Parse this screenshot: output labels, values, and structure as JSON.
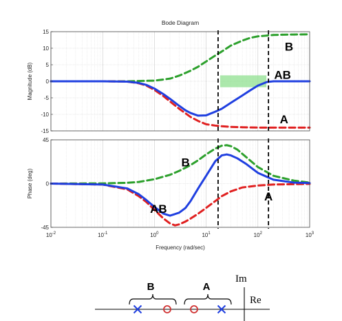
{
  "chart_data": [
    {
      "type": "line",
      "title": "Bode Diagram",
      "ylabel": "Magnitude (dB)",
      "xscale": "log",
      "xlim": [
        0.01,
        1000
      ],
      "ylim": [
        -15,
        15
      ],
      "xticks": [
        "10^-2",
        "10^-1",
        "10^0",
        "10^1",
        "10^2",
        "10^3"
      ],
      "yticks": [
        15,
        10,
        5,
        0,
        -5,
        -10,
        -15
      ],
      "grid": true,
      "series": [
        {
          "name": "B",
          "color": "#2ca02c",
          "style": "dashed",
          "x": [
            0.01,
            0.1,
            0.3,
            1,
            2,
            3,
            5,
            7,
            10,
            15,
            20,
            30,
            50,
            70,
            100,
            200,
            300,
            500,
            1000
          ],
          "y": [
            0,
            0,
            0,
            0.2,
            0.8,
            1.7,
            3.2,
            4.4,
            6.0,
            7.8,
            9.0,
            10.8,
            12.3,
            13.1,
            13.6,
            14.0,
            14.1,
            14.15,
            14.2
          ]
        },
        {
          "name": "A",
          "color": "#e02020",
          "style": "dashed",
          "x": [
            0.01,
            0.1,
            0.3,
            0.5,
            0.7,
            1,
            1.5,
            2,
            3,
            5,
            7,
            10,
            15,
            20,
            30,
            50,
            100,
            200,
            1000
          ],
          "y": [
            0,
            0,
            -0.1,
            -0.6,
            -1.3,
            -2.6,
            -4.5,
            -6.1,
            -8.3,
            -10.8,
            -12.0,
            -13.0,
            -13.4,
            -13.6,
            -13.8,
            -13.9,
            -14.0,
            -14.0,
            -14.0
          ]
        },
        {
          "name": "AB",
          "color": "#1f3fe0",
          "style": "solid",
          "x": [
            0.01,
            0.1,
            0.3,
            0.5,
            0.7,
            1,
            1.5,
            2,
            3,
            4,
            5,
            7,
            10,
            15,
            20,
            30,
            50,
            70,
            100,
            150,
            200,
            300,
            1000
          ],
          "y": [
            0,
            0,
            -0.1,
            -0.5,
            -1.1,
            -2.2,
            -3.9,
            -5.3,
            -7.4,
            -8.8,
            -9.6,
            -10.4,
            -10.3,
            -9.2,
            -8.3,
            -6.5,
            -4.3,
            -2.8,
            -1.3,
            -0.2,
            0,
            0,
            0
          ]
        }
      ],
      "annotations": [
        {
          "text": "B",
          "x": 400,
          "y": 10.5
        },
        {
          "text": "AB",
          "x": 300,
          "y": 2.0
        },
        {
          "text": "A",
          "x": 320,
          "y": -11.5
        }
      ],
      "vlines": [
        17,
        160
      ],
      "shaded_band": {
        "x": [
          17,
          160
        ],
        "y": [
          -1.8,
          1.8
        ],
        "color": "#90e090"
      }
    },
    {
      "type": "line",
      "xlabel": "Frequency  (rad/sec)",
      "ylabel": "Phase (deg)",
      "xscale": "log",
      "xlim": [
        0.01,
        1000
      ],
      "ylim": [
        -45,
        45
      ],
      "xticks": [
        "10^-2",
        "10^-1",
        "10^0",
        "10^1",
        "10^2",
        "10^3"
      ],
      "yticks": [
        45,
        0,
        -45
      ],
      "grid": true,
      "series": [
        {
          "name": "B",
          "color": "#2ca02c",
          "style": "dashed",
          "x": [
            0.01,
            0.1,
            0.3,
            0.5,
            1,
            2,
            3,
            5,
            7,
            10,
            15,
            20,
            25,
            30,
            40,
            60,
            100,
            200,
            500,
            1000
          ],
          "y": [
            0,
            0.2,
            0.8,
            1.7,
            4.5,
            9,
            13,
            19,
            24,
            30,
            36,
            39,
            39.5,
            38.5,
            35,
            27,
            17,
            8,
            3,
            1
          ]
        },
        {
          "name": "A",
          "color": "#e02020",
          "style": "dashed",
          "x": [
            0.01,
            0.1,
            0.3,
            0.5,
            0.7,
            1,
            1.5,
            2,
            2.5,
            3,
            4,
            5,
            7,
            10,
            15,
            20,
            30,
            50,
            100,
            200,
            1000
          ],
          "y": [
            0,
            -1,
            -6,
            -13,
            -19,
            -27,
            -36,
            -41,
            -43,
            -42,
            -39,
            -36,
            -31,
            -25,
            -18,
            -13,
            -8,
            -4,
            -2,
            -1,
            -0.3
          ]
        },
        {
          "name": "AB",
          "color": "#1f3fe0",
          "style": "solid",
          "x": [
            0.01,
            0.1,
            0.3,
            0.5,
            0.7,
            1,
            1.5,
            2,
            3,
            4,
            5,
            7,
            10,
            15,
            20,
            25,
            30,
            40,
            60,
            100,
            200,
            500,
            1000
          ],
          "y": [
            0,
            -1,
            -5,
            -11,
            -17,
            -24,
            -31,
            -33,
            -30,
            -25,
            -18,
            -5,
            8,
            23,
            29,
            30,
            29,
            26,
            20,
            11,
            4,
            1,
            0.5
          ]
        }
      ],
      "annotations": [
        {
          "text": "B",
          "x": 4,
          "y": 22
        },
        {
          "text": "AB",
          "x": 1.2,
          "y": -26
        },
        {
          "text": "A",
          "x": 160,
          "y": -13
        }
      ],
      "vlines": [
        17,
        160
      ]
    }
  ],
  "pz_diagram": {
    "im_label": "Im",
    "re_label": "Re",
    "group_labels": [
      "B",
      "A"
    ]
  }
}
